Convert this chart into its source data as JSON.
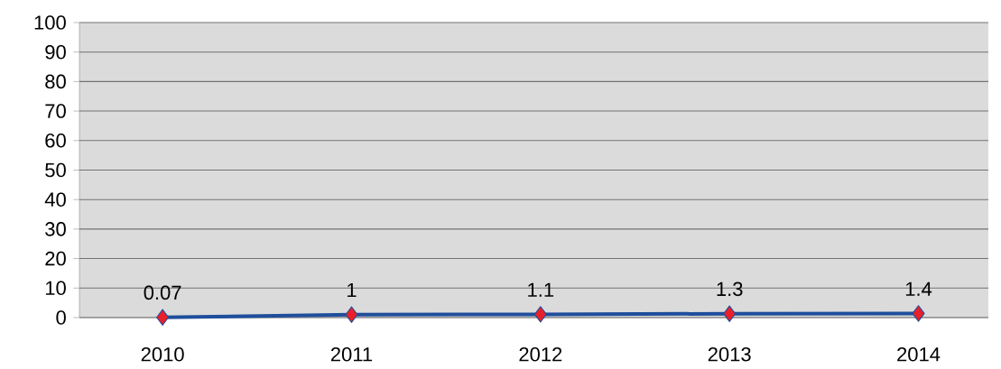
{
  "chart_data": {
    "type": "line",
    "categories": [
      "2010",
      "2011",
      "2012",
      "2013",
      "2014"
    ],
    "series": [
      {
        "color": "#1f4e9c",
        "values": [
          0.07,
          1,
          1.1,
          1.3,
          1.4
        ]
      }
    ],
    "ylim": [
      0,
      100
    ],
    "yticks": [
      0,
      10,
      20,
      30,
      40,
      50,
      60,
      70,
      80,
      90,
      100
    ],
    "grid": "y",
    "marker": "diamond",
    "line_style": "solid",
    "data_labels": true
  }
}
